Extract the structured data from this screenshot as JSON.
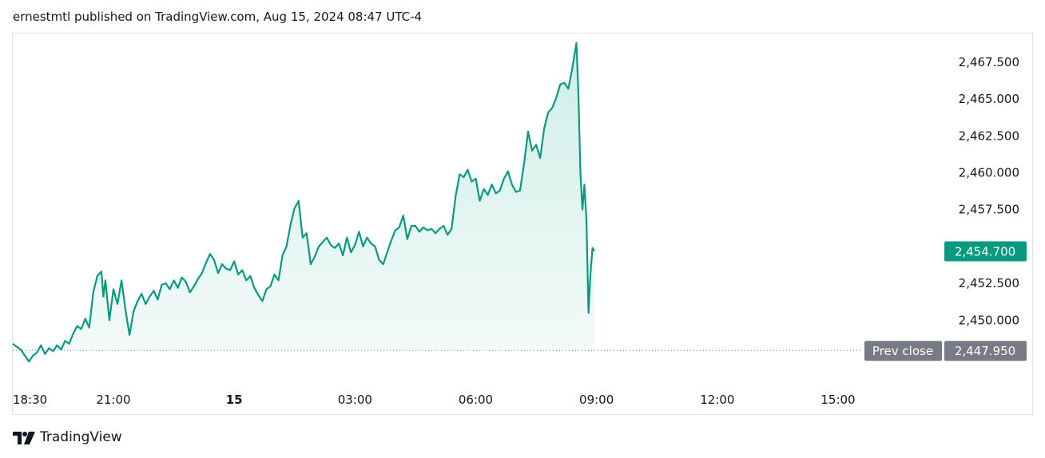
{
  "header": {
    "text": "ernestmtl published on TradingView.com, Aug 15, 2024 08:47 UTC-4"
  },
  "footer": {
    "brand": "TradingView",
    "logo_icon": "tradingview-logo-icon"
  },
  "colors": {
    "line": "#089981",
    "area_top": "#cfeee7",
    "area_bottom": "#f4fbf9",
    "prev_close": "#787b86",
    "grid_border": "#e0e3eb"
  },
  "chart_data": {
    "type": "area",
    "title": "",
    "xlabel": "",
    "ylabel": "",
    "x_ticks": [
      {
        "label": "18:30",
        "hour": 0,
        "bold": false
      },
      {
        "label": "21:00",
        "hour": 2.5,
        "bold": false
      },
      {
        "label": "15",
        "hour": 5.5,
        "bold": true
      },
      {
        "label": "03:00",
        "hour": 8.5,
        "bold": false
      },
      {
        "label": "06:00",
        "hour": 11.5,
        "bold": false
      },
      {
        "label": "09:00",
        "hour": 14.5,
        "bold": false
      },
      {
        "label": "12:00",
        "hour": 17.5,
        "bold": false
      },
      {
        "label": "15:00",
        "hour": 20.5,
        "bold": false
      }
    ],
    "y_ticks": [
      "2,467.500",
      "2,465.000",
      "2,462.500",
      "2,460.000",
      "2,457.500",
      "2,452.500",
      "2,450.000"
    ],
    "y_tick_values": [
      2467.5,
      2465.0,
      2462.5,
      2460.0,
      2457.5,
      2452.5,
      2450.0
    ],
    "ylim": [
      2446.5,
      2469.5
    ],
    "xlim_hours": [
      0,
      23.1
    ],
    "last_price": {
      "label": "2,454.700",
      "value": 2454.7
    },
    "prev_close": {
      "name": "Prev close",
      "label": "2,447.950",
      "value": 2447.95
    },
    "series": [
      {
        "x": [
          0,
          0.2,
          0.3,
          0.4,
          0.5,
          0.6,
          0.7,
          0.8,
          0.9,
          1.0,
          1.1,
          1.2,
          1.3,
          1.4,
          1.5,
          1.6,
          1.7,
          1.8,
          1.9,
          2.0,
          2.1,
          2.2,
          2.25,
          2.3,
          2.4,
          2.5,
          2.6,
          2.7,
          2.8,
          2.9,
          3.0,
          3.1,
          3.2,
          3.3,
          3.4,
          3.5,
          3.6,
          3.7,
          3.8,
          3.9,
          4.0,
          4.1,
          4.2,
          4.3,
          4.4,
          4.5,
          4.6,
          4.7,
          4.8,
          4.9,
          5.0,
          5.1,
          5.2,
          5.3,
          5.4,
          5.5,
          5.6,
          5.7,
          5.8,
          5.9,
          6.0,
          6.1,
          6.2,
          6.3,
          6.4,
          6.5,
          6.6,
          6.7,
          6.8,
          6.9,
          7.0,
          7.1,
          7.2,
          7.3,
          7.4,
          7.5,
          7.6,
          7.7,
          7.8,
          7.9,
          8.0,
          8.1,
          8.2,
          8.3,
          8.4,
          8.5,
          8.6,
          8.7,
          8.8,
          8.9,
          9.0,
          9.1,
          9.2,
          9.3,
          9.4,
          9.5,
          9.6,
          9.7,
          9.8,
          9.9,
          10.0,
          10.1,
          10.2,
          10.3,
          10.4,
          10.5,
          10.6,
          10.7,
          10.8,
          10.9,
          11.0,
          11.1,
          11.2,
          11.3,
          11.4,
          11.5,
          11.6,
          11.7,
          11.8,
          11.9,
          12.0,
          12.1,
          12.2,
          12.3,
          12.4,
          12.5,
          12.6,
          12.7,
          12.8,
          12.9,
          13.0,
          13.1,
          13.2,
          13.3,
          13.4,
          13.5,
          13.6,
          13.7,
          13.8,
          13.9,
          14.0,
          14.05,
          14.1,
          14.15,
          14.2,
          14.25,
          14.3,
          14.35,
          14.4,
          14.45
        ],
        "y": [
          2448.4,
          2448.0,
          2447.6,
          2447.2,
          2447.6,
          2447.8,
          2448.3,
          2447.7,
          2448.1,
          2447.9,
          2448.3,
          2448.0,
          2448.6,
          2448.4,
          2449.1,
          2449.6,
          2449.4,
          2450.1,
          2449.5,
          2451.9,
          2453.0,
          2453.3,
          2451.6,
          2452.7,
          2450.0,
          2452.1,
          2451.1,
          2452.7,
          2450.7,
          2449.0,
          2450.6,
          2451.3,
          2451.8,
          2451.1,
          2451.6,
          2452.0,
          2451.4,
          2452.4,
          2452.5,
          2452.1,
          2452.7,
          2452.2,
          2452.9,
          2452.6,
          2451.9,
          2452.3,
          2452.8,
          2453.2,
          2453.9,
          2454.5,
          2454.1,
          2453.2,
          2453.8,
          2453.5,
          2453.4,
          2454.0,
          2453.1,
          2453.4,
          2452.7,
          2453.0,
          2452.2,
          2451.7,
          2451.3,
          2452.1,
          2452.3,
          2453.1,
          2452.7,
          2454.4,
          2455.0,
          2456.5,
          2457.6,
          2458.1,
          2455.6,
          2455.9,
          2453.8,
          2454.3,
          2455.0,
          2455.3,
          2455.6,
          2455.1,
          2454.9,
          2455.2,
          2454.4,
          2455.6,
          2454.6,
          2455.1,
          2456.0,
          2455.0,
          2455.6,
          2455.2,
          2455.0,
          2454.1,
          2453.8,
          2454.6,
          2455.4,
          2456.1,
          2456.3,
          2457.1,
          2455.5,
          2456.4,
          2456.4,
          2456.0,
          2456.3,
          2456.1,
          2456.2,
          2455.9,
          2456.2,
          2456.4,
          2455.8,
          2456.2,
          2458.4,
          2459.9,
          2459.7,
          2460.2,
          2459.4,
          2459.6,
          2458.1,
          2458.9,
          2458.5,
          2459.2,
          2458.6,
          2458.8,
          2459.6,
          2460.1,
          2459.2,
          2458.7,
          2458.8,
          2460.6,
          2462.8,
          2461.5,
          2461.9,
          2461.0,
          2463.0,
          2464.1,
          2464.4,
          2465.1,
          2466.0,
          2466.1,
          2465.7,
          2467.1,
          2468.8,
          2465.3,
          2460.0,
          2457.5,
          2459.2,
          2456.7,
          2450.5,
          2453.2,
          2454.9,
          2454.7
        ]
      }
    ]
  }
}
